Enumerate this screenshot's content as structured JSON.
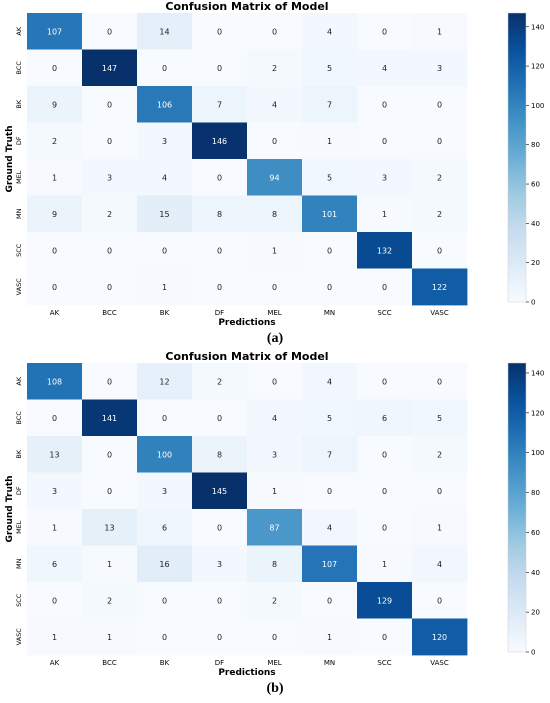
{
  "panels": [
    {
      "label": "(a)"
    },
    {
      "label": "(b)"
    }
  ],
  "chart_data": [
    {
      "type": "heatmap",
      "title": "Confusion Matrix of Model",
      "xlabel": "Predictions",
      "ylabel": "Ground Truth",
      "x_categories": [
        "AK",
        "BCC",
        "BK",
        "DF",
        "MEL",
        "MN",
        "SCC",
        "VASC"
      ],
      "y_categories": [
        "AK",
        "BCC",
        "BK",
        "DF",
        "MEL",
        "MN",
        "SCC",
        "VASC"
      ],
      "values": [
        [
          107,
          0,
          14,
          0,
          0,
          4,
          0,
          1
        ],
        [
          0,
          147,
          0,
          0,
          2,
          5,
          4,
          3
        ],
        [
          9,
          0,
          106,
          7,
          4,
          7,
          0,
          0
        ],
        [
          2,
          0,
          3,
          146,
          0,
          1,
          0,
          0
        ],
        [
          1,
          3,
          4,
          0,
          94,
          5,
          3,
          2
        ],
        [
          9,
          2,
          15,
          8,
          8,
          101,
          1,
          2
        ],
        [
          0,
          0,
          0,
          0,
          1,
          0,
          132,
          0
        ],
        [
          0,
          0,
          1,
          0,
          0,
          0,
          0,
          122
        ]
      ],
      "colorbar_ticks": [
        0,
        20,
        40,
        60,
        80,
        100,
        120,
        140
      ],
      "color_range": [
        0,
        147
      ],
      "colormap": [
        "#f7fbff",
        "#deebf7",
        "#c6dbef",
        "#9ecae1",
        "#6baed6",
        "#4292c6",
        "#2171b5",
        "#08519c",
        "#08306b"
      ]
    },
    {
      "type": "heatmap",
      "title": "Confusion Matrix of Model",
      "xlabel": "Predictions",
      "ylabel": "Ground Truth",
      "x_categories": [
        "AK",
        "BCC",
        "BK",
        "DF",
        "MEL",
        "MN",
        "SCC",
        "VASC"
      ],
      "y_categories": [
        "AK",
        "BCC",
        "BK",
        "DF",
        "MEL",
        "MN",
        "SCC",
        "VASC"
      ],
      "values": [
        [
          108,
          0,
          12,
          2,
          0,
          4,
          0,
          0
        ],
        [
          0,
          141,
          0,
          0,
          4,
          5,
          6,
          5
        ],
        [
          13,
          0,
          100,
          8,
          3,
          7,
          0,
          2
        ],
        [
          3,
          0,
          3,
          145,
          1,
          0,
          0,
          0
        ],
        [
          1,
          13,
          6,
          0,
          87,
          4,
          0,
          1
        ],
        [
          6,
          1,
          16,
          3,
          8,
          107,
          1,
          4
        ],
        [
          0,
          2,
          0,
          0,
          2,
          0,
          129,
          0
        ],
        [
          1,
          1,
          0,
          0,
          0,
          1,
          0,
          120
        ]
      ],
      "colorbar_ticks": [
        0,
        20,
        40,
        60,
        80,
        100,
        120,
        140
      ],
      "color_range": [
        0,
        145
      ],
      "colormap": [
        "#f7fbff",
        "#deebf7",
        "#c6dbef",
        "#9ecae1",
        "#6baed6",
        "#4292c6",
        "#2171b5",
        "#08519c",
        "#08306b"
      ]
    }
  ]
}
